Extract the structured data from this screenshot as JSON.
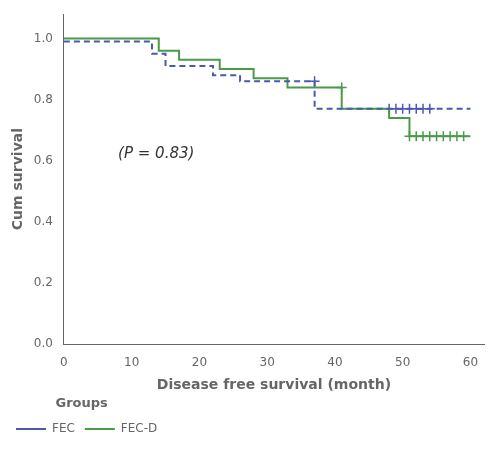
{
  "chart_data": {
    "type": "line",
    "xlabel": "Disease free survival (month)",
    "ylabel": "Cum survival",
    "series": [
      {
        "name": "FEC",
        "color": "#4a5aaa",
        "line_style": "dashed",
        "marker": "plus",
        "x": [
          0,
          13,
          13,
          15,
          15,
          22,
          22,
          26,
          26,
          30,
          30,
          37,
          37,
          42,
          42,
          60
        ],
        "values": [
          0.99,
          0.99,
          0.95,
          0.95,
          0.91,
          0.91,
          0.88,
          0.88,
          0.86,
          0.86,
          0.86,
          0.86,
          0.77,
          0.77,
          0.77,
          0.77
        ],
        "censor_x": [
          37,
          48,
          49,
          50,
          51,
          52,
          53,
          54
        ],
        "censor_values": [
          0.86,
          0.77,
          0.77,
          0.77,
          0.77,
          0.77,
          0.77,
          0.77
        ]
      },
      {
        "name": "FEC-D",
        "color": "#4a9a4a",
        "line_style": "solid",
        "marker": "plus",
        "x": [
          0,
          14,
          14,
          17,
          17,
          23,
          23,
          28,
          28,
          33,
          33,
          41,
          41,
          48,
          48,
          51,
          51,
          60
        ],
        "values": [
          1.0,
          1.0,
          0.96,
          0.96,
          0.93,
          0.93,
          0.9,
          0.9,
          0.87,
          0.87,
          0.84,
          0.84,
          0.77,
          0.77,
          0.74,
          0.74,
          0.68,
          0.68
        ],
        "censor_x": [
          41,
          51,
          52,
          53,
          54,
          55,
          56,
          57,
          58,
          59
        ],
        "censor_values": [
          0.84,
          0.68,
          0.68,
          0.68,
          0.68,
          0.68,
          0.68,
          0.68,
          0.68,
          0.68
        ]
      }
    ],
    "annotations": [
      {
        "text": "(P = 0.83)",
        "x": 8,
        "y": 0.61
      }
    ],
    "xlim": [
      0,
      62
    ],
    "ylim": [
      0.0,
      1.08
    ],
    "xticks": [
      0,
      10,
      20,
      30,
      40,
      50,
      60
    ],
    "yticks": [
      {
        "value": 0.0,
        "label": "0.0"
      },
      0.2,
      0.4,
      0.6,
      0.8,
      {
        "value": 1.0,
        "label": "1.0"
      }
    ],
    "legend": "lower left",
    "legend_title": "Groups",
    "grid": false
  }
}
